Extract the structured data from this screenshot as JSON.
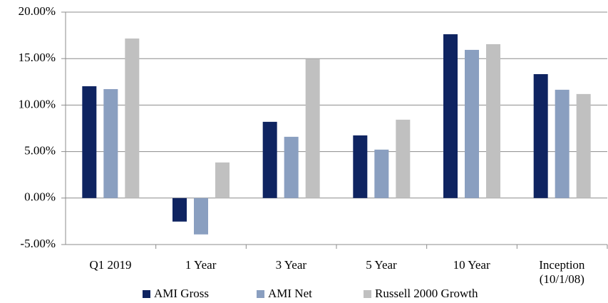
{
  "chart_data": {
    "type": "bar",
    "categories": [
      "Q1 2019",
      "1 Year",
      "3 Year",
      "5 Year",
      "10 Year",
      "Inception\n(10/1/08)"
    ],
    "series": [
      {
        "name": "AMI Gross",
        "color": "#0f2461",
        "values": [
          12.03,
          -2.53,
          8.2,
          6.74,
          17.62,
          13.33
        ]
      },
      {
        "name": "AMI Net",
        "color": "#8a9fc0",
        "values": [
          11.72,
          -3.91,
          6.59,
          5.21,
          15.94,
          11.65
        ]
      },
      {
        "name": "Russell 2000 Growth",
        "color": "#c0c0c0",
        "values": [
          17.16,
          3.83,
          14.94,
          8.43,
          16.55,
          11.19
        ]
      }
    ],
    "ylim": [
      -5,
      20
    ],
    "yticks": [
      {
        "value": -5,
        "label": "-5.00%"
      },
      {
        "value": 0,
        "label": "0.00%"
      },
      {
        "value": 5,
        "label": "5.00%"
      },
      {
        "value": 10,
        "label": "10.00%"
      },
      {
        "value": 15,
        "label": "15.00%"
      },
      {
        "value": 20,
        "label": "20.00%"
      }
    ],
    "grid": true
  }
}
